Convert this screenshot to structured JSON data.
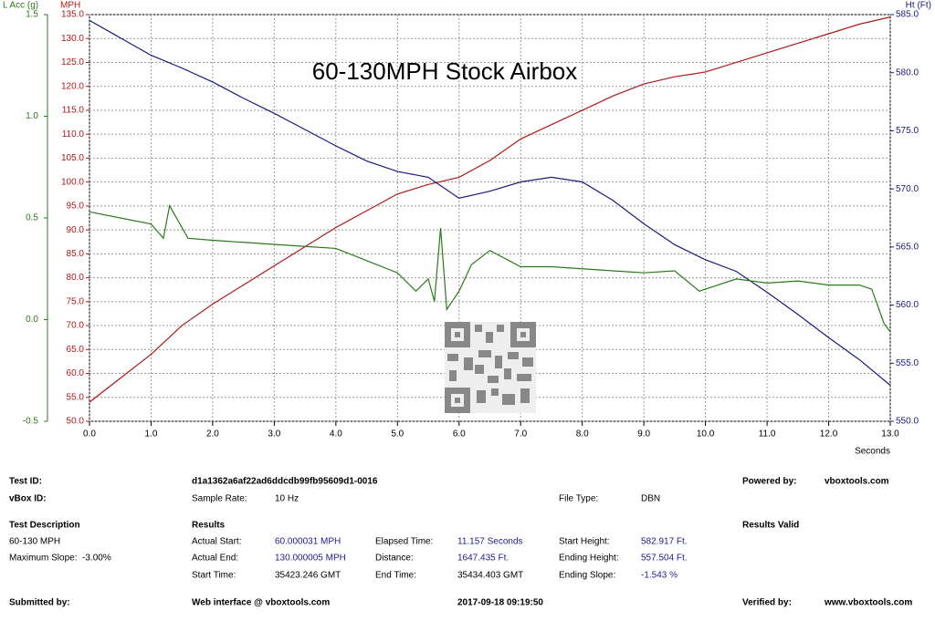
{
  "chart_data": {
    "type": "line",
    "title": "60-130MPH Stock Airbox",
    "x_label": "Seconds",
    "xlim": [
      0,
      13
    ],
    "xticks": [
      {
        "value": 0,
        "label": "0.0"
      },
      {
        "value": 1,
        "label": "1.0"
      },
      {
        "value": 2,
        "label": "2.0"
      },
      {
        "value": 3,
        "label": "3.0"
      },
      {
        "value": 4,
        "label": "4.0"
      },
      {
        "value": 5,
        "label": "5.0"
      },
      {
        "value": 6,
        "label": "6.0"
      },
      {
        "value": 7,
        "label": "7.0"
      },
      {
        "value": 8,
        "label": "8.0"
      },
      {
        "value": 9,
        "label": "9.0"
      },
      {
        "value": 10,
        "label": "10.0"
      },
      {
        "value": 11,
        "label": "11.0"
      },
      {
        "value": 12,
        "label": "12.0"
      },
      {
        "value": 13,
        "label": "13.0"
      }
    ],
    "ylim": [
      50,
      135
    ],
    "yticks": [
      {
        "value": 50,
        "label": "50.0"
      },
      {
        "value": 55,
        "label": "55.0"
      },
      {
        "value": 60,
        "label": "60.0"
      },
      {
        "value": 65,
        "label": "65.0"
      },
      {
        "value": 70,
        "label": "70.0"
      },
      {
        "value": 75,
        "label": "75.0"
      },
      {
        "value": 80,
        "label": "80.0"
      },
      {
        "value": 85,
        "label": "85.0"
      },
      {
        "value": 90,
        "label": "90.0"
      },
      {
        "value": 95,
        "label": "95.0"
      },
      {
        "value": 100,
        "label": "100.0"
      },
      {
        "value": 105,
        "label": "105.0"
      },
      {
        "value": 110,
        "label": "110.0"
      },
      {
        "value": 115,
        "label": "115.0"
      },
      {
        "value": 120,
        "label": "120.0"
      },
      {
        "value": 125,
        "label": "125.0"
      },
      {
        "value": 130,
        "label": "130.0"
      },
      {
        "value": 135,
        "label": "135.0"
      }
    ],
    "y2lim": [
      550,
      585
    ],
    "y2ticks": [
      {
        "value": 550,
        "label": "550.0"
      },
      {
        "value": 555,
        "label": "555.0"
      },
      {
        "value": 560,
        "label": "560.0"
      },
      {
        "value": 565,
        "label": "565.0"
      },
      {
        "value": 570,
        "label": "570.0"
      },
      {
        "value": 575,
        "label": "575.0"
      },
      {
        "value": 580,
        "label": "580.0"
      },
      {
        "value": 585,
        "label": "585.0"
      }
    ],
    "y3lim": [
      -0.5,
      1.5
    ],
    "y3ticks": [
      -0.5,
      {
        "value": 0,
        "label": "0.0"
      },
      0.5,
      {
        "value": 1,
        "label": "1.0"
      },
      1.5
    ],
    "grid": true,
    "series": [
      {
        "name": "MPH",
        "color": "#b01818",
        "axis": "y",
        "x": [
          0,
          0.5,
          1,
          1.5,
          2,
          2.5,
          3,
          3.5,
          4,
          4.5,
          5,
          5.5,
          6,
          6.5,
          7,
          7.5,
          8,
          8.5,
          9,
          9.5,
          10,
          10.5,
          11,
          11.5,
          12,
          12.5,
          13
        ],
        "values": [
          54,
          59,
          64,
          70,
          74.5,
          78.5,
          82.5,
          86.5,
          90.5,
          94,
          97.5,
          99.5,
          101,
          104.5,
          109,
          112,
          115,
          118,
          120.5,
          122,
          123,
          125,
          127,
          129,
          131,
          133,
          134.5
        ]
      },
      {
        "name": "Ht (Ft)",
        "color": "#1a1a80",
        "axis": "y2",
        "x": [
          0,
          0.5,
          1,
          1.5,
          2,
          2.5,
          3,
          3.5,
          4,
          4.5,
          5,
          5.5,
          6,
          6.5,
          7,
          7.5,
          8,
          8.5,
          9,
          9.5,
          10,
          10.5,
          11,
          11.5,
          12,
          12.5,
          13
        ],
        "values": [
          584.5,
          583,
          581.5,
          580.4,
          579.2,
          577.8,
          576.5,
          575.1,
          573.7,
          572.4,
          571.5,
          571,
          569.2,
          569.8,
          570.6,
          571,
          570.6,
          569,
          567,
          565.2,
          563.9,
          562.9,
          561.1,
          559.2,
          557.2,
          555.3,
          553.1
        ]
      },
      {
        "name": "L Acc (g)",
        "color": "#2a7a1a",
        "axis": "y3",
        "x": [
          0,
          0.5,
          1,
          1.2,
          1.3,
          1.6,
          2,
          2.5,
          3,
          3.5,
          4,
          4.5,
          5,
          5.3,
          5.5,
          5.6,
          5.7,
          5.8,
          6,
          6.2,
          6.5,
          7,
          7.5,
          8,
          8.5,
          9,
          9.5,
          9.9,
          10,
          10.5,
          11,
          11.5,
          12,
          12.5,
          12.7,
          12.9,
          13
        ],
        "values": [
          0.53,
          0.5,
          0.47,
          0.4,
          0.56,
          0.4,
          0.39,
          0.38,
          0.37,
          0.36,
          0.35,
          0.29,
          0.23,
          0.14,
          0.2,
          0.09,
          0.45,
          0.05,
          0.14,
          0.27,
          0.34,
          0.26,
          0.26,
          0.25,
          0.24,
          0.23,
          0.24,
          0.14,
          0.15,
          0.2,
          0.18,
          0.19,
          0.17,
          0.17,
          0.15,
          -0.02,
          -0.06
        ]
      }
    ]
  },
  "info": {
    "test_id_label": "Test ID:",
    "test_id": "d1a1362a6af22ad6ddcdb99fb95609d1-0016",
    "powered_by_label": "Powered by:",
    "powered_by": "vboxtools.com",
    "vbox_id_label": "vBox ID:",
    "sample_rate_label": "Sample Rate:",
    "sample_rate": "10 Hz",
    "file_type_label": "File Type:",
    "file_type": "DBN",
    "test_description_label": "Test Description",
    "results_label": "Results",
    "results_valid": "Results Valid",
    "test_description": "60-130 MPH",
    "maximum_slope": "Maximum Slope:  -3.00%",
    "actual_start_label": "Actual Start:",
    "actual_start": "60.000031 MPH",
    "elapsed_time_label": "Elapsed Time:",
    "elapsed_time": "11.157 Seconds",
    "start_height_label": "Start Height:",
    "start_height": "582.917 Ft.",
    "actual_end_label": "Actual End:",
    "actual_end": "130.000005 MPH",
    "distance_label": "Distance:",
    "distance": "1647.435 Ft.",
    "ending_height_label": "Ending Height:",
    "ending_height": "557.504 Ft.",
    "start_time_label": "Start Time:",
    "start_time": "35423.246 GMT",
    "end_time_label": "End Time:",
    "end_time": "35434.403 GMT",
    "ending_slope_label": "Ending Slope:",
    "ending_slope": "-1.543 %",
    "submitted_by_label": "Submitted by:",
    "web_interface": "Web interface @ vboxtools.com",
    "date": "2017-09-18 09:19:50",
    "verified_by_label": "Verified by:",
    "verified_by": "www.vboxtools.com"
  }
}
